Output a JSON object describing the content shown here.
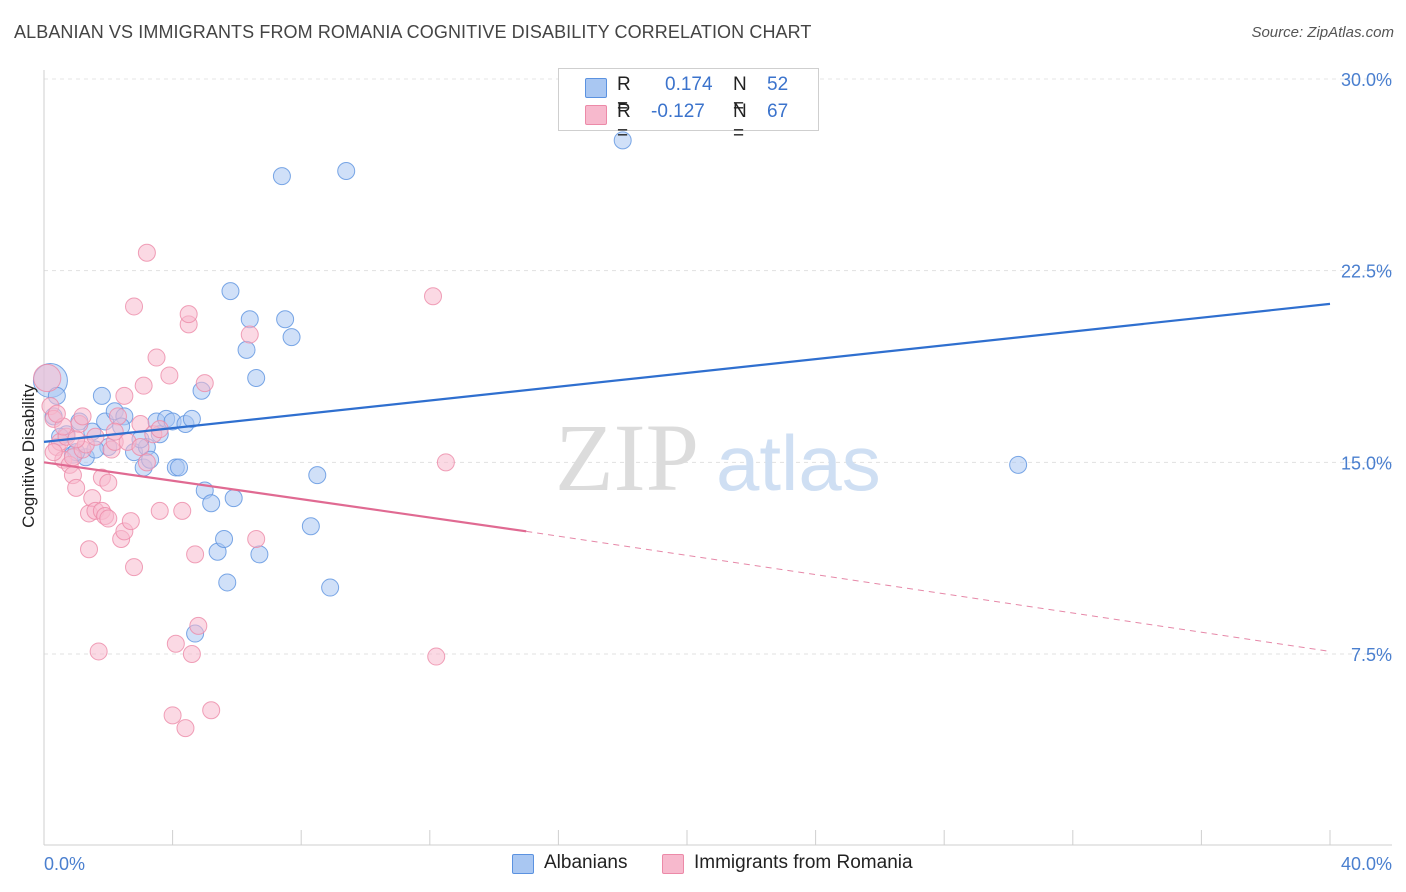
{
  "title": "ALBANIAN VS IMMIGRANTS FROM ROMANIA COGNITIVE DISABILITY CORRELATION CHART",
  "source": "Source: ZipAtlas.com",
  "watermark": {
    "zip": "ZIP",
    "atlas": "atlas"
  },
  "legend": {
    "rows": [
      {
        "r_label": "R =",
        "r_value": "0.174",
        "n_label": "N =",
        "n_value": "52",
        "color": "#a9c7f2"
      },
      {
        "r_label": "R =",
        "r_value": "-0.127",
        "n_label": "N =",
        "n_value": "67",
        "color": "#f7b9cd"
      }
    ]
  },
  "bottom_legend": [
    {
      "label": "Albanians",
      "color": "#a9c7f2"
    },
    {
      "label": "Immigrants from Romania",
      "color": "#f7b9cd"
    }
  ],
  "chart_data": {
    "type": "scatter",
    "title": "ALBANIAN VS IMMIGRANTS FROM ROMANIA COGNITIVE DISABILITY CORRELATION CHART",
    "xlabel": "",
    "ylabel": "Cognitive Disability",
    "xlim": [
      0,
      40
    ],
    "ylim": [
      0,
      31
    ],
    "x_tick_labels": [
      "0.0%",
      "40.0%"
    ],
    "y_ticks": [
      7.5,
      15.0,
      22.5,
      30.0
    ],
    "y_tick_labels": [
      "7.5%",
      "15.0%",
      "22.5%",
      "30.0%"
    ],
    "series": [
      {
        "name": "Albanians",
        "color": "#5b92e0",
        "fill": "#a9c7f2",
        "trend": {
          "x": [
            0,
            40
          ],
          "y": [
            15.8,
            21.2
          ],
          "color": "#2f6fcf"
        },
        "points": [
          [
            0.2,
            18.2,
            2.0
          ],
          [
            0.4,
            17.6,
            1
          ],
          [
            0.3,
            16.8,
            1
          ],
          [
            0.7,
            16.1,
            1
          ],
          [
            0.9,
            15.3,
            1
          ],
          [
            1.1,
            16.6,
            1
          ],
          [
            1.3,
            15.2,
            1
          ],
          [
            1.5,
            16.2,
            1
          ],
          [
            1.8,
            17.6,
            1
          ],
          [
            1.9,
            16.6,
            1
          ],
          [
            2.2,
            17.0,
            1
          ],
          [
            2.5,
            16.8,
            1
          ],
          [
            2.4,
            16.4,
            1
          ],
          [
            2.8,
            15.4,
            1
          ],
          [
            3.1,
            14.8,
            1
          ],
          [
            3.2,
            15.6,
            1
          ],
          [
            3.5,
            16.6,
            1
          ],
          [
            3.6,
            16.1,
            1
          ],
          [
            3.8,
            16.7,
            1
          ],
          [
            4.0,
            16.6,
            1
          ],
          [
            4.1,
            14.8,
            1
          ],
          [
            4.2,
            14.8,
            1
          ],
          [
            4.4,
            16.5,
            1
          ],
          [
            4.6,
            16.7,
            1
          ],
          [
            4.9,
            17.8,
            1
          ],
          [
            5.0,
            13.9,
            1
          ],
          [
            5.2,
            13.4,
            1
          ],
          [
            5.4,
            11.5,
            1
          ],
          [
            5.6,
            12.0,
            1
          ],
          [
            5.7,
            10.3,
            1
          ],
          [
            5.8,
            21.7,
            1
          ],
          [
            5.9,
            13.6,
            1
          ],
          [
            6.3,
            19.4,
            1
          ],
          [
            6.4,
            20.6,
            1
          ],
          [
            6.6,
            18.3,
            1
          ],
          [
            6.7,
            11.4,
            1
          ],
          [
            7.4,
            26.2,
            1
          ],
          [
            7.5,
            20.6,
            1
          ],
          [
            7.7,
            19.9,
            1
          ],
          [
            8.3,
            12.5,
            1
          ],
          [
            8.5,
            14.5,
            1
          ],
          [
            8.9,
            10.1,
            1
          ],
          [
            9.4,
            26.4,
            1
          ],
          [
            4.7,
            8.3,
            1
          ],
          [
            18.0,
            27.6,
            1
          ],
          [
            30.3,
            14.9,
            1
          ],
          [
            0.5,
            16.0,
            1
          ],
          [
            1.0,
            15.4,
            1
          ],
          [
            2.0,
            15.6,
            1
          ],
          [
            3.0,
            15.9,
            1
          ],
          [
            3.3,
            15.1,
            1
          ],
          [
            1.6,
            15.5,
            1
          ]
        ]
      },
      {
        "name": "Immigrants from Romania",
        "color": "#ec8aa8",
        "fill": "#f7b9cd",
        "trend": {
          "x": [
            0,
            15
          ],
          "y": [
            15.0,
            12.3
          ],
          "color": "#e06a92"
        },
        "trend_dashed": {
          "x": [
            15,
            40
          ],
          "y": [
            12.3,
            7.6
          ],
          "color": "#e06a92"
        },
        "points": [
          [
            0.1,
            18.3,
            1.6
          ],
          [
            0.2,
            17.2,
            1
          ],
          [
            0.3,
            16.7,
            1
          ],
          [
            0.4,
            15.6,
            1
          ],
          [
            0.5,
            15.8,
            1
          ],
          [
            0.6,
            15.1,
            1
          ],
          [
            0.7,
            16.0,
            1
          ],
          [
            0.8,
            14.9,
            1
          ],
          [
            0.9,
            15.2,
            1
          ],
          [
            0.9,
            14.5,
            1
          ],
          [
            1.0,
            14.0,
            1
          ],
          [
            1.1,
            16.5,
            1
          ],
          [
            1.2,
            15.5,
            1
          ],
          [
            1.3,
            15.7,
            1
          ],
          [
            1.2,
            16.8,
            1
          ],
          [
            1.4,
            13.0,
            1
          ],
          [
            1.4,
            11.6,
            1
          ],
          [
            1.5,
            13.6,
            1
          ],
          [
            1.6,
            13.1,
            1
          ],
          [
            1.6,
            16.0,
            1
          ],
          [
            1.7,
            7.6,
            1
          ],
          [
            1.8,
            14.4,
            1
          ],
          [
            1.8,
            13.1,
            1
          ],
          [
            1.9,
            12.9,
            1
          ],
          [
            2.0,
            12.8,
            1
          ],
          [
            2.0,
            14.2,
            1
          ],
          [
            2.1,
            15.5,
            1
          ],
          [
            2.2,
            15.8,
            1
          ],
          [
            2.3,
            16.8,
            1
          ],
          [
            2.4,
            12.0,
            1
          ],
          [
            2.5,
            17.6,
            1
          ],
          [
            2.5,
            12.3,
            1
          ],
          [
            2.6,
            15.8,
            1
          ],
          [
            2.7,
            12.7,
            1
          ],
          [
            2.8,
            21.1,
            1
          ],
          [
            2.8,
            10.9,
            1
          ],
          [
            3.0,
            16.5,
            1
          ],
          [
            3.0,
            15.6,
            1
          ],
          [
            3.1,
            18.0,
            1
          ],
          [
            3.2,
            15.0,
            1
          ],
          [
            3.2,
            23.2,
            1
          ],
          [
            3.4,
            16.1,
            1
          ],
          [
            3.5,
            19.1,
            1
          ],
          [
            3.6,
            16.3,
            1
          ],
          [
            3.6,
            13.1,
            1
          ],
          [
            3.9,
            18.4,
            1
          ],
          [
            4.0,
            5.1,
            1
          ],
          [
            4.1,
            7.9,
            1
          ],
          [
            4.3,
            13.1,
            1
          ],
          [
            4.4,
            4.6,
            1
          ],
          [
            4.5,
            20.4,
            1
          ],
          [
            4.5,
            20.8,
            1
          ],
          [
            4.6,
            7.5,
            1
          ],
          [
            4.7,
            11.4,
            1
          ],
          [
            4.8,
            8.6,
            1
          ],
          [
            5.0,
            18.1,
            1
          ],
          [
            5.2,
            5.3,
            1
          ],
          [
            6.4,
            20.0,
            1
          ],
          [
            6.6,
            12.0,
            1
          ],
          [
            12.1,
            21.5,
            1
          ],
          [
            12.2,
            7.4,
            1
          ],
          [
            12.5,
            15.0,
            1
          ],
          [
            0.3,
            15.4,
            1
          ],
          [
            0.6,
            16.4,
            1
          ],
          [
            1.0,
            15.9,
            1
          ],
          [
            2.2,
            16.2,
            1
          ],
          [
            0.4,
            16.9,
            1
          ]
        ]
      }
    ]
  }
}
